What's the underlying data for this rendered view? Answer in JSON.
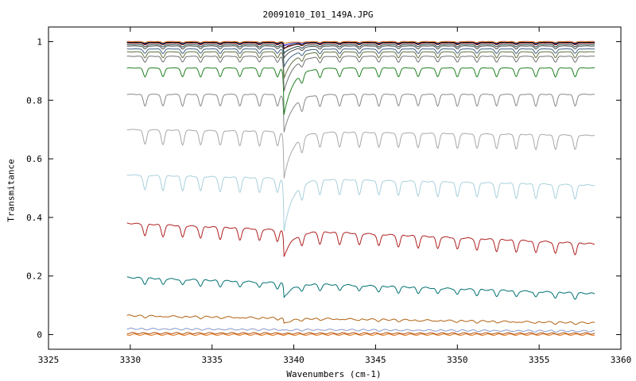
{
  "chart_data": {
    "type": "line",
    "title": "20091010_I01_149A.JPG",
    "xlabel": "Wavenumbers (cm-1)",
    "ylabel": "Transmitance",
    "xlim": [
      3325,
      3360
    ],
    "ylim": [
      -0.05,
      1.05
    ],
    "xticks": [
      3325,
      3330,
      3335,
      3340,
      3345,
      3350,
      3355,
      3360
    ],
    "yticks": [
      0,
      0.2,
      0.4,
      0.6,
      0.8,
      1
    ],
    "ytick_labels": [
      "0",
      "0.2",
      "0.4",
      "0.6",
      "0.8",
      "1"
    ],
    "x_data_range": [
      3329.8,
      3358.4
    ],
    "strong_line_x": 3339.4,
    "weak_line_x": [
      3330.9,
      3332.0,
      3333.2,
      3334.3,
      3335.5,
      3336.7,
      3337.9,
      3339.0,
      3340.5,
      3341.6,
      3342.8,
      3344.0,
      3345.2,
      3346.4,
      3347.6,
      3348.8,
      3350.0,
      3351.2,
      3352.4,
      3353.6,
      3354.8,
      3356.0,
      3357.2
    ],
    "grid": false,
    "series": [
      {
        "color": "#e07010",
        "values": [
          0.0,
          0.0
        ],
        "strong_depth": 0.0,
        "weak_depth": 0.0
      },
      {
        "color": "#b05010",
        "values": [
          0.005,
          0.004
        ],
        "strong_depth": 0.002,
        "weak_depth": 0.001
      },
      {
        "color": "#8898c8",
        "values": [
          0.02,
          0.012
        ],
        "strong_depth": 0.004,
        "weak_depth": 0.002
      },
      {
        "color": "#b06010",
        "values": [
          0.065,
          0.04
        ],
        "strong_depth": 0.02,
        "weak_depth": 0.005
      },
      {
        "color": "#007070",
        "values": [
          0.195,
          0.14
        ],
        "strong_depth": 0.05,
        "weak_depth": 0.02
      },
      {
        "color": "#b02020",
        "values": [
          0.38,
          0.31
        ],
        "strong_depth": 0.09,
        "weak_depth": 0.04
      },
      {
        "color": "#a8d0dc",
        "values": [
          0.545,
          0.51
        ],
        "strong_depth": 0.18,
        "weak_depth": 0.05
      },
      {
        "color": "#a8a8a8",
        "values": [
          0.7,
          0.68
        ],
        "strong_depth": 0.16,
        "weak_depth": 0.05
      },
      {
        "color": "#888888",
        "values": [
          0.82,
          0.82
        ],
        "strong_depth": 0.13,
        "weak_depth": 0.04
      },
      {
        "color": "#208020",
        "values": [
          0.91,
          0.91
        ],
        "strong_depth": 0.16,
        "weak_depth": 0.03
      },
      {
        "color": "#707070",
        "values": [
          0.95,
          0.95
        ],
        "strong_depth": 0.12,
        "weak_depth": 0.02
      },
      {
        "color": "#607040",
        "values": [
          0.965,
          0.965
        ],
        "strong_depth": 0.09,
        "weak_depth": 0.02
      },
      {
        "color": "#406080",
        "values": [
          0.975,
          0.975
        ],
        "strong_depth": 0.06,
        "weak_depth": 0.015
      },
      {
        "color": "#505050",
        "values": [
          0.985,
          0.985
        ],
        "strong_depth": 0.04,
        "weak_depth": 0.01
      },
      {
        "color": "#204040",
        "values": [
          0.99,
          0.99
        ],
        "strong_depth": 0.03,
        "weak_depth": 0.008
      },
      {
        "color": "#b03030",
        "values": [
          0.995,
          0.995
        ],
        "strong_depth": 0.02,
        "weak_depth": 0.006
      },
      {
        "color": "#c020c0",
        "values": [
          1.0,
          1.0
        ],
        "strong_depth": 0.015,
        "weak_depth": 0.005
      },
      {
        "color": "#2040c0",
        "values": [
          0.998,
          0.998
        ],
        "strong_depth": 0.01,
        "weak_depth": 0.004
      },
      {
        "color": "#e08020",
        "values": [
          1.0,
          1.0
        ],
        "strong_depth": 0.005,
        "weak_depth": 0.003
      },
      {
        "color": "#000000",
        "values": [
          0.997,
          0.997
        ],
        "strong_depth": 0.02,
        "weak_depth": 0.006
      }
    ]
  }
}
